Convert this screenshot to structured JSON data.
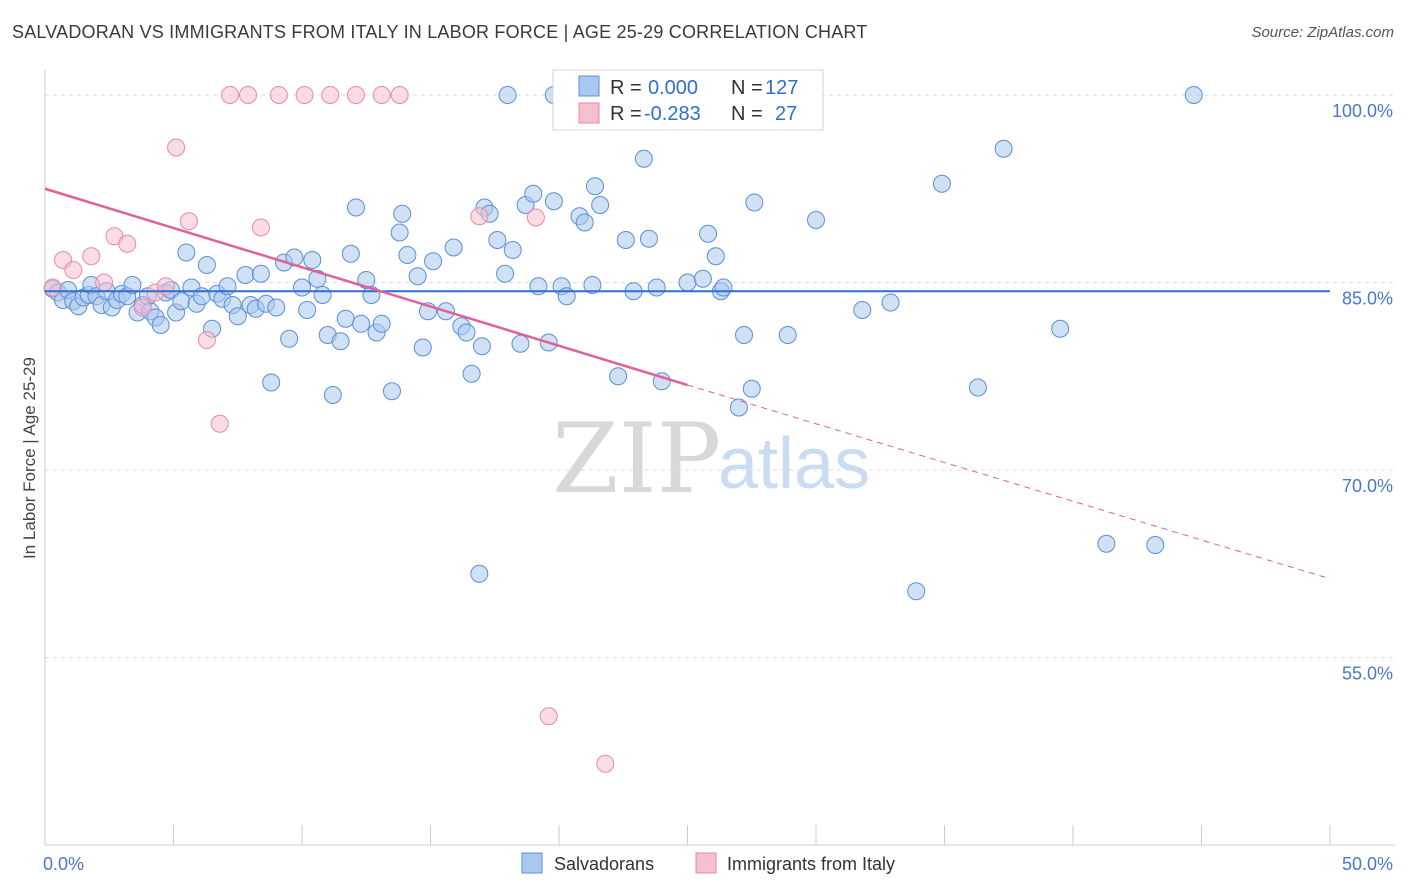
{
  "header": {
    "title": "SALVADORAN VS IMMIGRANTS FROM ITALY IN LABOR FORCE | AGE 25-29 CORRELATION CHART",
    "source": "Source: ZipAtlas.com"
  },
  "legend": {
    "series1": {
      "r_label": "R =",
      "r_value": "0.000",
      "n_label": "N =",
      "n_value": "127"
    },
    "series2": {
      "r_label": "R =",
      "r_value": "-0.283",
      "n_label": "N =",
      "n_value": "27"
    }
  },
  "bottom_legend": {
    "series1": "Salvadorans",
    "series2": "Immigrants from Italy"
  },
  "watermark": {
    "zip": "ZIP",
    "atlas": "atlas"
  },
  "colors": {
    "blue_fill": "#a9c8ef",
    "blue_stroke": "#5b8fd6",
    "blue_line": "#2f6fd1",
    "pink_fill": "#f6bfd0",
    "pink_stroke": "#e88aa8",
    "pink_line": "#e0609a",
    "grid": "#dddddd",
    "axis_text": "#4a78c8"
  },
  "chart_data": {
    "type": "scatter",
    "title": "SALVADORAN VS IMMIGRANTS FROM ITALY IN LABOR FORCE | AGE 25-29 CORRELATION CHART",
    "xlabel": "",
    "ylabel": "In Labor Force | Age 25-29",
    "xlim": [
      0,
      50
    ],
    "ylim": [
      40,
      102
    ],
    "x_tick_labels": [
      "0.0%",
      "50.0%"
    ],
    "y_ticks": [
      55,
      70,
      85,
      100
    ],
    "y_tick_labels": [
      "55.0%",
      "70.0%",
      "85.0%",
      "100.0%"
    ],
    "grid": true,
    "legend_position": "top-center",
    "series": [
      {
        "name": "Salvadorans",
        "r": 0.0,
        "n": 127,
        "trend": {
          "x": [
            0,
            50
          ],
          "y": [
            84.3,
            84.3
          ]
        },
        "points": [
          [
            0.3,
            84.5
          ],
          [
            0.5,
            84.2
          ],
          [
            0.7,
            83.6
          ],
          [
            0.9,
            84.4
          ],
          [
            1.1,
            83.5
          ],
          [
            1.3,
            83.1
          ],
          [
            1.5,
            83.8
          ],
          [
            1.7,
            84.0
          ],
          [
            1.8,
            84.8
          ],
          [
            2.0,
            83.9
          ],
          [
            2.2,
            83.2
          ],
          [
            2.4,
            84.3
          ],
          [
            2.6,
            83.0
          ],
          [
            2.8,
            83.6
          ],
          [
            3.0,
            84.1
          ],
          [
            3.2,
            83.9
          ],
          [
            3.4,
            84.8
          ],
          [
            3.6,
            82.6
          ],
          [
            3.8,
            83.2
          ],
          [
            4.0,
            83.9
          ],
          [
            4.1,
            82.7
          ],
          [
            4.3,
            82.2
          ],
          [
            4.5,
            81.6
          ],
          [
            4.7,
            84.2
          ],
          [
            4.9,
            84.4
          ],
          [
            5.1,
            82.6
          ],
          [
            5.3,
            83.5
          ],
          [
            5.5,
            87.4
          ],
          [
            5.7,
            84.6
          ],
          [
            5.9,
            83.3
          ],
          [
            6.1,
            83.9
          ],
          [
            6.3,
            86.4
          ],
          [
            6.5,
            81.3
          ],
          [
            6.7,
            84.1
          ],
          [
            6.9,
            83.7
          ],
          [
            7.1,
            84.7
          ],
          [
            7.3,
            83.2
          ],
          [
            7.5,
            82.3
          ],
          [
            7.8,
            85.6
          ],
          [
            8.0,
            83.2
          ],
          [
            8.2,
            82.9
          ],
          [
            8.4,
            85.7
          ],
          [
            8.6,
            83.3
          ],
          [
            8.8,
            77.0
          ],
          [
            9.0,
            83.0
          ],
          [
            9.3,
            86.6
          ],
          [
            9.5,
            80.5
          ],
          [
            9.7,
            87.0
          ],
          [
            10.0,
            84.6
          ],
          [
            10.2,
            82.8
          ],
          [
            10.4,
            86.8
          ],
          [
            10.6,
            85.3
          ],
          [
            10.8,
            84.0
          ],
          [
            11.0,
            80.8
          ],
          [
            11.2,
            76.0
          ],
          [
            11.5,
            80.3
          ],
          [
            11.7,
            82.1
          ],
          [
            11.9,
            87.3
          ],
          [
            12.1,
            91.0
          ],
          [
            12.3,
            81.7
          ],
          [
            12.5,
            85.2
          ],
          [
            12.7,
            84.0
          ],
          [
            12.9,
            81.0
          ],
          [
            13.1,
            81.7
          ],
          [
            13.5,
            76.3
          ],
          [
            13.8,
            89.0
          ],
          [
            13.9,
            90.5
          ],
          [
            14.1,
            87.2
          ],
          [
            14.5,
            85.5
          ],
          [
            14.7,
            79.8
          ],
          [
            14.9,
            82.7
          ],
          [
            15.1,
            86.7
          ],
          [
            15.6,
            82.7
          ],
          [
            15.9,
            87.8
          ],
          [
            16.2,
            81.5
          ],
          [
            16.4,
            81.0
          ],
          [
            16.6,
            77.7
          ],
          [
            17.0,
            79.9
          ],
          [
            17.1,
            91.0
          ],
          [
            17.3,
            90.5
          ],
          [
            17.6,
            88.4
          ],
          [
            17.9,
            85.7
          ],
          [
            18.2,
            87.6
          ],
          [
            18.5,
            80.1
          ],
          [
            18.7,
            91.2
          ],
          [
            19.0,
            92.1
          ],
          [
            19.2,
            84.7
          ],
          [
            19.6,
            80.2
          ],
          [
            19.8,
            91.5
          ],
          [
            20.1,
            84.7
          ],
          [
            20.3,
            83.9
          ],
          [
            20.8,
            90.3
          ],
          [
            21.0,
            89.8
          ],
          [
            21.3,
            84.8
          ],
          [
            21.4,
            92.7
          ],
          [
            21.6,
            91.2
          ],
          [
            22.3,
            77.5
          ],
          [
            22.6,
            88.4
          ],
          [
            22.9,
            84.3
          ],
          [
            23.3,
            94.9
          ],
          [
            23.5,
            88.5
          ],
          [
            23.8,
            84.6
          ],
          [
            24.0,
            77.1
          ],
          [
            25.0,
            85.0
          ],
          [
            25.6,
            85.3
          ],
          [
            25.8,
            88.9
          ],
          [
            26.1,
            87.1
          ],
          [
            26.3,
            84.3
          ],
          [
            26.4,
            84.6
          ],
          [
            27.2,
            80.8
          ],
          [
            27.6,
            91.4
          ],
          [
            28.9,
            80.8
          ],
          [
            30.0,
            90.0
          ],
          [
            31.8,
            82.8
          ],
          [
            32.9,
            83.4
          ],
          [
            34.9,
            92.9
          ],
          [
            36.3,
            76.6
          ],
          [
            37.3,
            95.7
          ],
          [
            39.5,
            81.3
          ],
          [
            41.3,
            64.1
          ],
          [
            43.2,
            64.0
          ],
          [
            44.7,
            100.0
          ],
          [
            16.9,
            61.7
          ],
          [
            33.9,
            60.3
          ],
          [
            27.5,
            76.5
          ],
          [
            27.0,
            75.0
          ],
          [
            18.0,
            100.0
          ],
          [
            19.8,
            100.0
          ]
        ]
      },
      {
        "name": "Immigrants from Italy",
        "r": -0.283,
        "n": 27,
        "trend": {
          "x": [
            0,
            25
          ],
          "y": [
            92.5,
            76.8
          ]
        },
        "trend_dashed": {
          "x": [
            25,
            50
          ],
          "y": [
            76.8,
            61.3
          ]
        },
        "points": [
          [
            0.3,
            84.6
          ],
          [
            0.7,
            86.8
          ],
          [
            1.1,
            86.0
          ],
          [
            1.8,
            87.1
          ],
          [
            2.3,
            85.0
          ],
          [
            2.7,
            88.7
          ],
          [
            3.2,
            88.1
          ],
          [
            3.8,
            83.0
          ],
          [
            4.3,
            84.2
          ],
          [
            4.7,
            84.7
          ],
          [
            5.1,
            95.8
          ],
          [
            5.6,
            89.9
          ],
          [
            6.3,
            80.4
          ],
          [
            6.8,
            73.7
          ],
          [
            7.2,
            100.0
          ],
          [
            7.9,
            100.0
          ],
          [
            8.4,
            89.4
          ],
          [
            9.1,
            100.0
          ],
          [
            10.1,
            100.0
          ],
          [
            11.1,
            100.0
          ],
          [
            12.1,
            100.0
          ],
          [
            13.1,
            100.0
          ],
          [
            13.8,
            100.0
          ],
          [
            16.9,
            90.3
          ],
          [
            19.1,
            90.2
          ],
          [
            19.6,
            50.3
          ],
          [
            21.8,
            46.5
          ]
        ]
      }
    ]
  }
}
